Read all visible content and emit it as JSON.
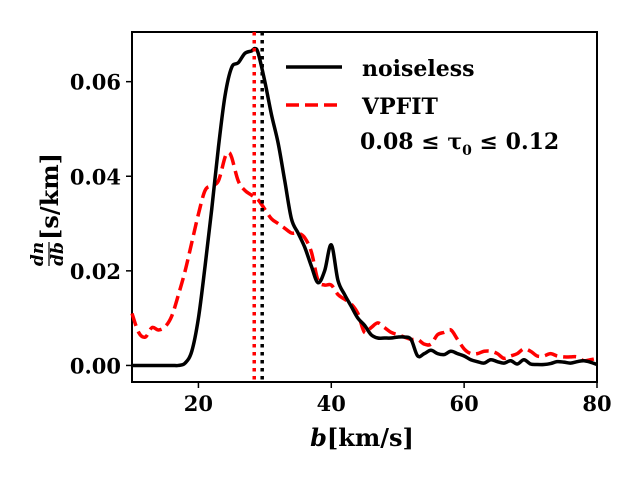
{
  "chart_data": {
    "type": "line",
    "title": "",
    "xlabel": "b[km/s]",
    "xlabel_var": "b",
    "xlabel_unit": "[km/s]",
    "ylabel": "dn/db[s/km]",
    "ylabel_num": "dn",
    "ylabel_den": "db",
    "ylabel_unit": "[s/km]",
    "xlim": [
      10,
      80
    ],
    "ylim": [
      -0.0035,
      0.0705
    ],
    "xticks": [
      20,
      40,
      60,
      80
    ],
    "xtick_labels": [
      "20",
      "40",
      "60",
      "80"
    ],
    "yticks": [
      0.0,
      0.02,
      0.04,
      0.06
    ],
    "ytick_labels": [
      "0.00",
      "0.02",
      "0.04",
      "0.06"
    ],
    "grid": false,
    "legend": {
      "location": "top-right",
      "entries": [
        "noiseless",
        "VPFIT"
      ],
      "annotation": "0.08 ≤ τ0 ≤ 0.12",
      "annotation_text": "0.08 ≤ τ",
      "annotation_sub": "0",
      "annotation_tail": " ≤ 0.12"
    },
    "series": [
      {
        "name": "noiseless",
        "color": "#000000",
        "style": "solid",
        "x": [
          10,
          12,
          14,
          16,
          17,
          18,
          19,
          20,
          21,
          22,
          23,
          24,
          25,
          26,
          27,
          28,
          28.5,
          29,
          30,
          31,
          32,
          33,
          34,
          35,
          36,
          37,
          38,
          39,
          40,
          41,
          42,
          43,
          44,
          45,
          46,
          47,
          48,
          49,
          50,
          51,
          52,
          53,
          54,
          55,
          56,
          57,
          58,
          59,
          60,
          61,
          62,
          63,
          64,
          65,
          66,
          67,
          68,
          69,
          70,
          71,
          72,
          73,
          74,
          75,
          76,
          77,
          78,
          79,
          80
        ],
        "y": [
          0,
          0,
          0,
          0,
          0,
          0.0005,
          0.003,
          0.01,
          0.021,
          0.033,
          0.046,
          0.057,
          0.063,
          0.064,
          0.066,
          0.0665,
          0.067,
          0.066,
          0.06,
          0.053,
          0.047,
          0.039,
          0.031,
          0.028,
          0.025,
          0.021,
          0.0175,
          0.02,
          0.0255,
          0.018,
          0.015,
          0.0125,
          0.01,
          0.0085,
          0.0065,
          0.0058,
          0.0058,
          0.0058,
          0.006,
          0.006,
          0.0055,
          0.002,
          0.0025,
          0.0032,
          0.0025,
          0.0023,
          0.003,
          0.0025,
          0.002,
          0.0012,
          0.0008,
          0.0005,
          0.0012,
          0.0008,
          0.0005,
          0.001,
          0.0003,
          0.0012,
          0.0003,
          0.0002,
          0.0002,
          0.0004,
          0.0008,
          0.0007,
          0.0005,
          0.0008,
          0.001,
          0.0007,
          0.0002
        ]
      },
      {
        "name": "VPFIT",
        "color": "#ff0000",
        "style": "dashed",
        "x": [
          10,
          11,
          12,
          13,
          14,
          15,
          16,
          17,
          18,
          19,
          20,
          21,
          22,
          23,
          24,
          24.5,
          25,
          26,
          27,
          28,
          29,
          30,
          31,
          32,
          33,
          34,
          35,
          36,
          37,
          38,
          39,
          40,
          41,
          42,
          43,
          44,
          45,
          46,
          47,
          48,
          49,
          50,
          51,
          52,
          53,
          54,
          55,
          56,
          57,
          58,
          59,
          60,
          61,
          62,
          63,
          64,
          65,
          66,
          67,
          68,
          69,
          70,
          71,
          72,
          73,
          74,
          75,
          76,
          77,
          78,
          79,
          80
        ],
        "y": [
          0.011,
          0.007,
          0.006,
          0.008,
          0.0075,
          0.0082,
          0.0105,
          0.015,
          0.02,
          0.026,
          0.032,
          0.037,
          0.038,
          0.039,
          0.044,
          0.045,
          0.044,
          0.039,
          0.037,
          0.036,
          0.035,
          0.033,
          0.031,
          0.03,
          0.029,
          0.028,
          0.028,
          0.027,
          0.024,
          0.018,
          0.017,
          0.017,
          0.015,
          0.014,
          0.013,
          0.011,
          0.007,
          0.008,
          0.009,
          0.008,
          0.007,
          0.0065,
          0.006,
          0.0055,
          0.0055,
          0.0045,
          0.0045,
          0.0065,
          0.007,
          0.0075,
          0.0055,
          0.0035,
          0.0025,
          0.0025,
          0.003,
          0.003,
          0.0025,
          0.0015,
          0.002,
          0.0025,
          0.0035,
          0.003,
          0.002,
          0.002,
          0.0025,
          0.002,
          0.0018,
          0.0018,
          0.0018,
          0.001,
          0.0012,
          0.0015
        ]
      }
    ],
    "vlines": [
      {
        "name": "noiseless-mean",
        "x": 29.6,
        "color": "#000000",
        "style": "dotted"
      },
      {
        "name": "vpfit-mean",
        "x": 28.4,
        "color": "#ff0000",
        "style": "dotted"
      }
    ]
  }
}
